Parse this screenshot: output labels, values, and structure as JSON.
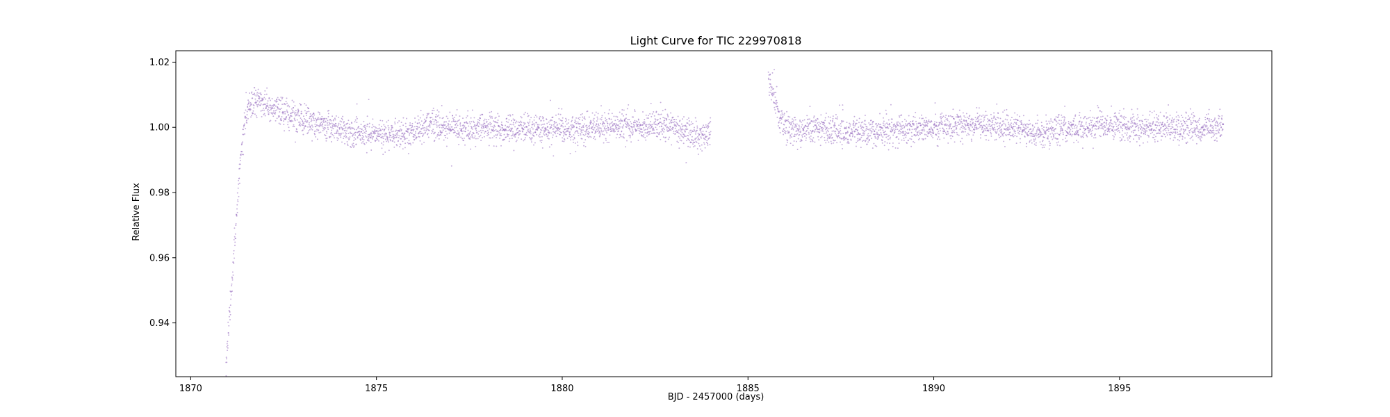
{
  "chart_data": {
    "type": "scatter",
    "title": "Light Curve for TIC 229970818",
    "xlabel": "BJD - 2457000 (days)",
    "ylabel": "Relative Flux",
    "xlim": [
      1869.6,
      1899.1
    ],
    "ylim": [
      0.9235,
      1.0235
    ],
    "xticks": [
      1870,
      1875,
      1880,
      1885,
      1890,
      1895
    ],
    "xtick_labels": [
      "1870",
      "1875",
      "1880",
      "1885",
      "1890",
      "1895"
    ],
    "yticks": [
      0.94,
      0.96,
      0.98,
      1.0,
      1.02
    ],
    "ytick_labels": [
      "0.94",
      "0.96",
      "0.98",
      "1.00",
      "1.02"
    ],
    "grid": false,
    "legend": "none",
    "marker_color": "#9467bd",
    "series": [
      {
        "segments": [
          {
            "x_start": 1870.95,
            "x_end": 1884.0,
            "trend": [
              [
                1870.95,
                0.928
              ],
              [
                1871.05,
                0.942
              ],
              [
                1871.15,
                0.958
              ],
              [
                1871.25,
                0.975
              ],
              [
                1871.35,
                0.992
              ],
              [
                1871.45,
                1.002
              ],
              [
                1871.55,
                1.007
              ],
              [
                1871.75,
                1.0085
              ],
              [
                1872.0,
                1.0075
              ],
              [
                1872.5,
                1.004
              ],
              [
                1873.0,
                1.0025
              ],
              [
                1873.5,
                1.001
              ],
              [
                1874.0,
                0.9995
              ],
              [
                1874.5,
                0.998
              ],
              [
                1875.0,
                0.998
              ],
              [
                1875.5,
                0.9975
              ],
              [
                1876.0,
                0.999
              ],
              [
                1876.5,
                1.0005
              ],
              [
                1877.0,
                1.0
              ],
              [
                1877.5,
                0.9995
              ],
              [
                1878.0,
                1.0
              ],
              [
                1878.5,
                0.9995
              ],
              [
                1879.0,
                0.9995
              ],
              [
                1879.5,
                1.0
              ],
              [
                1880.0,
                0.9995
              ],
              [
                1880.5,
                1.0
              ],
              [
                1881.0,
                1.0
              ],
              [
                1881.5,
                1.0
              ],
              [
                1882.0,
                1.0
              ],
              [
                1882.5,
                1.0005
              ],
              [
                1883.0,
                1.0
              ],
              [
                1883.5,
                0.998
              ],
              [
                1884.0,
                0.997
              ]
            ],
            "scatter": 0.0022
          },
          {
            "x_start": 1885.55,
            "x_end": 1897.8,
            "trend": [
              [
                1885.55,
                1.014
              ],
              [
                1885.65,
                1.011
              ],
              [
                1885.75,
                1.008
              ],
              [
                1885.85,
                1.004
              ],
              [
                1886.0,
                1.0005
              ],
              [
                1886.3,
                0.9995
              ],
              [
                1886.7,
                0.9995
              ],
              [
                1887.0,
                0.9995
              ],
              [
                1887.5,
                0.999
              ],
              [
                1888.0,
                0.999
              ],
              [
                1888.5,
                0.9985
              ],
              [
                1889.0,
                0.999
              ],
              [
                1889.5,
                0.9995
              ],
              [
                1890.0,
                1.0
              ],
              [
                1890.5,
                1.0005
              ],
              [
                1891.0,
                1.001
              ],
              [
                1891.5,
                1.0005
              ],
              [
                1892.0,
                1.0
              ],
              [
                1892.5,
                0.999
              ],
              [
                1893.0,
                0.9985
              ],
              [
                1893.5,
                0.9995
              ],
              [
                1894.0,
                0.9995
              ],
              [
                1894.5,
                1.0005
              ],
              [
                1895.0,
                1.0005
              ],
              [
                1895.5,
                1.0
              ],
              [
                1896.0,
                1.0
              ],
              [
                1896.5,
                1.0
              ],
              [
                1897.0,
                1.0
              ],
              [
                1897.5,
                1.0
              ],
              [
                1897.8,
                1.0005
              ]
            ],
            "scatter": 0.0022
          }
        ]
      }
    ]
  }
}
